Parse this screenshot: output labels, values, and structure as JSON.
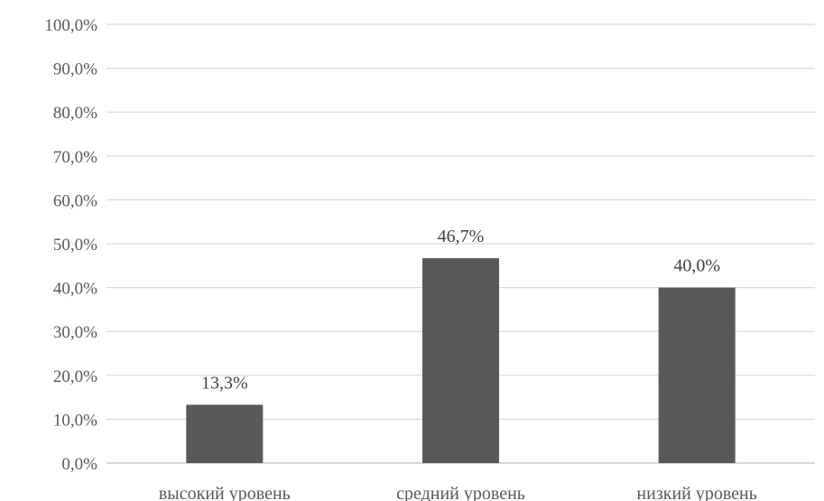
{
  "chart_data": {
    "type": "bar",
    "categories": [
      "высокий уровень",
      "средний уровень",
      "низкий уровень"
    ],
    "values": [
      13.3,
      46.7,
      40.0
    ],
    "data_labels": [
      "13,3%",
      "46,7%",
      "40,0%"
    ],
    "ylim": [
      0,
      100
    ],
    "yticks": [
      0,
      10,
      20,
      30,
      40,
      50,
      60,
      70,
      80,
      90,
      100
    ],
    "ytick_labels": [
      "0,0%",
      "10,0%",
      "20,0%",
      "30,0%",
      "40,0%",
      "50,0%",
      "60,0%",
      "70,0%",
      "80,0%",
      "90,0%",
      "100,0%"
    ],
    "grid": true,
    "legend": "none",
    "colors": {
      "bar": "#595959",
      "grid": "#d9d9d9",
      "text": "#595959"
    }
  }
}
